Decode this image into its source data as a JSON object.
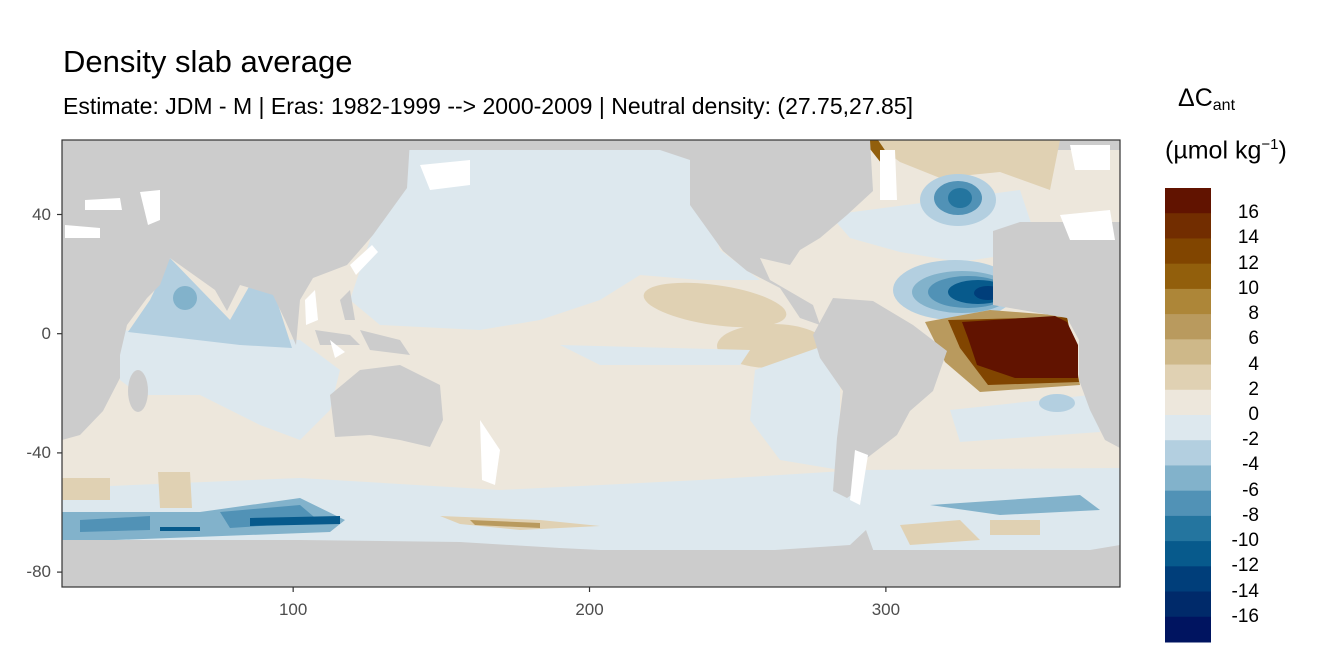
{
  "chart_data": {
    "type": "heatmap",
    "title": "Density slab average",
    "subtitle": "Estimate: JDM - M | Eras: 1982-1999 --> 2000-2009 | Neutral density: (27.75,27.85]",
    "xlabel": "",
    "ylabel": "",
    "xlim": [
      22,
      379
    ],
    "ylim": [
      -85,
      65
    ],
    "x_ticks": [
      {
        "value": 100,
        "label": "100"
      },
      {
        "value": 200,
        "label": "200"
      },
      {
        "value": 300,
        "label": "300"
      }
    ],
    "y_ticks": [
      {
        "value": 40,
        "label": "40"
      },
      {
        "value": 0,
        "label": "0"
      },
      {
        "value": -40,
        "label": "-40"
      },
      {
        "value": -80,
        "label": "-80"
      }
    ],
    "grid": false,
    "legend": {
      "title_main": "ΔC",
      "title_sub": "ant",
      "unit_main": "(µmol kg",
      "unit_sup": "−1",
      "unit_close": ")",
      "placement": "right",
      "colors": [
        "#611300",
        "#722d00",
        "#814500",
        "#925f0c",
        "#ad8638",
        "#b99a5e",
        "#ceb889",
        "#e0d1b3",
        "#ede7dc",
        "#dde8ee",
        "#b3cfe0",
        "#82b2cb",
        "#5192b6",
        "#24759f",
        "#075a8c",
        "#003e7a",
        "#002a6a",
        "#001460"
      ],
      "labels": [
        "16",
        "14",
        "12",
        "10",
        "8",
        "6",
        "4",
        "2",
        "0",
        "-2",
        "-4",
        "-6",
        "-8",
        "-10",
        "-12",
        "-14",
        "-16"
      ]
    },
    "land_color": "#cccccc",
    "description_regions": []
  }
}
